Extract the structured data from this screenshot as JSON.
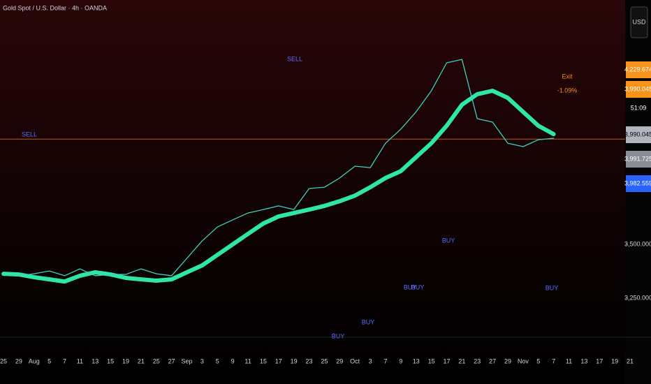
{
  "chart_data": {
    "type": "line",
    "title": "Gold Spot / U.S. Dollar · 4h · OANDA",
    "currency_button": "USD",
    "categories": [
      "25",
      "29",
      "Aug",
      "5",
      "7",
      "11",
      "13",
      "15",
      "19",
      "21",
      "25",
      "27",
      "Sep",
      "3",
      "5",
      "9",
      "11",
      "15",
      "17",
      "19",
      "23",
      "25",
      "29",
      "Oct",
      "3",
      "7",
      "9",
      "13",
      "15",
      "17",
      "21",
      "23",
      "27",
      "29",
      "Nov",
      "5",
      "7",
      "11",
      "13",
      "17",
      "19",
      "21"
    ],
    "series": [
      {
        "name": "Price",
        "color": "#3fd0c0",
        "width": 1.3,
        "values": [
          3360,
          3354,
          3363,
          3376,
          3354,
          3386,
          3354,
          3360,
          3360,
          3386,
          3363,
          3354,
          3435,
          3516,
          3581,
          3614,
          3646,
          3662,
          3679,
          3662,
          3760,
          3766,
          3809,
          3864,
          3857,
          3971,
          4036,
          4117,
          4215,
          4345,
          4361,
          4085,
          4069,
          3971,
          3955,
          3987,
          3994,
          null,
          null,
          null,
          null,
          null
        ]
      },
      {
        "name": "Trend",
        "color": "#2ee6a6",
        "width": 6,
        "values": [
          3363,
          3360,
          3347,
          3337,
          3327,
          3354,
          3370,
          3360,
          3344,
          3337,
          3331,
          3337,
          3370,
          3402,
          3451,
          3500,
          3549,
          3597,
          3630,
          3646,
          3662,
          3679,
          3701,
          3727,
          3766,
          3809,
          3841,
          3906,
          3971,
          4052,
          4150,
          4199,
          4215,
          4182,
          4117,
          4052,
          4013,
          null,
          null,
          null,
          null,
          null
        ]
      }
    ],
    "ylim": [
      3077.5,
      4637.5
    ],
    "yticks": [
      {
        "value": 3500,
        "label": "3,500.000"
      },
      {
        "value": 3250,
        "label": "3,250.000"
      }
    ],
    "current_price": 3990.045,
    "price_labels": [
      {
        "value": 4229.674,
        "label": "4,229.674",
        "color": "#f7931a"
      },
      {
        "value": 3990.045,
        "label": "3,990.045",
        "color": "#f7931a"
      },
      {
        "value": 3990.045,
        "label": "3,990.045",
        "color": "#b2b5be"
      },
      {
        "value": 3991.725,
        "label": "3,991.725",
        "color": "#8a8d96"
      },
      {
        "value": 3982.559,
        "label": "3,982.559",
        "color": "#2962ff"
      }
    ],
    "countdown": "51:09",
    "annotations": [
      "SELL",
      "SELL",
      "BUY",
      "BUY",
      "BUY",
      "BUY",
      "BUY",
      "BUY",
      "Exit",
      "-1.09%"
    ]
  }
}
